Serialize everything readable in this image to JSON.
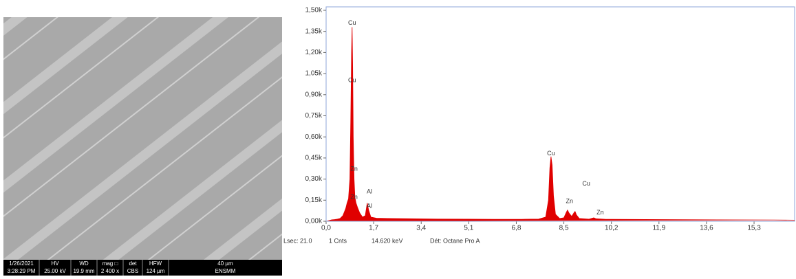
{
  "chart_data": {
    "type": "area",
    "x": [
      0.0,
      0.1,
      0.2,
      0.3,
      0.4,
      0.5,
      0.6,
      0.7,
      0.75,
      0.8,
      0.85,
      0.88,
      0.91,
      0.93,
      0.95,
      0.97,
      1.0,
      1.03,
      1.07,
      1.12,
      1.2,
      1.3,
      1.4,
      1.47,
      1.52,
      1.6,
      1.8,
      2.2,
      3.0,
      4.0,
      5.0,
      6.0,
      7.0,
      7.6,
      7.85,
      7.95,
      8.0,
      8.04,
      8.08,
      8.13,
      8.2,
      8.35,
      8.5,
      8.58,
      8.63,
      8.68,
      8.78,
      8.86,
      8.9,
      8.95,
      9.05,
      9.4,
      9.52,
      9.57,
      9.65,
      10.0,
      12.0,
      14.0,
      16.0,
      16.75
    ],
    "series": [
      {
        "color": "#e00000",
        "values": [
          0,
          5,
          10,
          12,
          15,
          20,
          40,
          90,
          130,
          160,
          300,
          700,
          1200,
          1380,
          1100,
          600,
          300,
          170,
          130,
          100,
          60,
          30,
          40,
          130,
          80,
          30,
          22,
          20,
          18,
          16,
          15,
          14,
          14,
          16,
          30,
          150,
          380,
          460,
          400,
          180,
          50,
          20,
          25,
          60,
          80,
          60,
          35,
          60,
          70,
          45,
          20,
          15,
          22,
          25,
          18,
          14,
          12,
          10,
          9,
          8
        ]
      }
    ],
    "xlim": [
      0,
      16.75
    ],
    "ylim": [
      0,
      1500
    ],
    "xticks": [
      {
        "value": 0,
        "label": "0,0"
      },
      {
        "value": 1.7,
        "label": "1,7"
      },
      {
        "value": 3.4,
        "label": "3,4"
      },
      {
        "value": 5.1,
        "label": "5,1"
      },
      {
        "value": 6.8,
        "label": "6,8"
      },
      {
        "value": 8.5,
        "label": "8,5"
      },
      {
        "value": 10.2,
        "label": "10,2"
      },
      {
        "value": 11.9,
        "label": "11,9"
      },
      {
        "value": 13.6,
        "label": "13,6"
      },
      {
        "value": 15.3,
        "label": "15,3"
      }
    ],
    "yticks": [
      {
        "value": 0,
        "label": "0,00k"
      },
      {
        "value": 150,
        "label": "0,15k"
      },
      {
        "value": 300,
        "label": "0,30k"
      },
      {
        "value": 450,
        "label": "0,45k"
      },
      {
        "value": 600,
        "label": "0,60k"
      },
      {
        "value": 750,
        "label": "0,75k"
      },
      {
        "value": 900,
        "label": "0,90k"
      },
      {
        "value": 1050,
        "label": "1,05k"
      },
      {
        "value": 1200,
        "label": "1,20k"
      },
      {
        "value": 1350,
        "label": "1,35k"
      },
      {
        "value": 1500,
        "label": "1,50k"
      }
    ],
    "annotations": [
      {
        "text": "Cu",
        "x": 0.93,
        "y": 1410
      },
      {
        "text": "Cu",
        "x": 0.93,
        "y": 1000
      },
      {
        "text": "Zn",
        "x": 1.0,
        "y": 370
      },
      {
        "text": "Zn",
        "x": 1.0,
        "y": 170
      },
      {
        "text": "Al",
        "x": 1.55,
        "y": 210
      },
      {
        "text": "Al",
        "x": 1.55,
        "y": 107
      },
      {
        "text": "Cu",
        "x": 8.04,
        "y": 480
      },
      {
        "text": "Cu",
        "x": 9.3,
        "y": 265
      },
      {
        "text": "Zn",
        "x": 8.7,
        "y": 142
      },
      {
        "text": "Zn",
        "x": 9.8,
        "y": 60
      }
    ]
  },
  "footer": [
    "Lsec: 21.0",
    "1 Cnts",
    "14.620 keV",
    "Dét: Octane Pro A"
  ],
  "micrograph": {
    "info_bar": [
      [
        "1/26/2021",
        "3:28:29 PM"
      ],
      [
        "HV",
        "25.00 kV"
      ],
      [
        "WD",
        "19.9 mm"
      ],
      [
        "mag □",
        "2 400 x"
      ],
      [
        "det",
        "CBS"
      ],
      [
        "HFW",
        "124 µm"
      ],
      [
        "40 µm",
        "ENSMM"
      ]
    ]
  }
}
